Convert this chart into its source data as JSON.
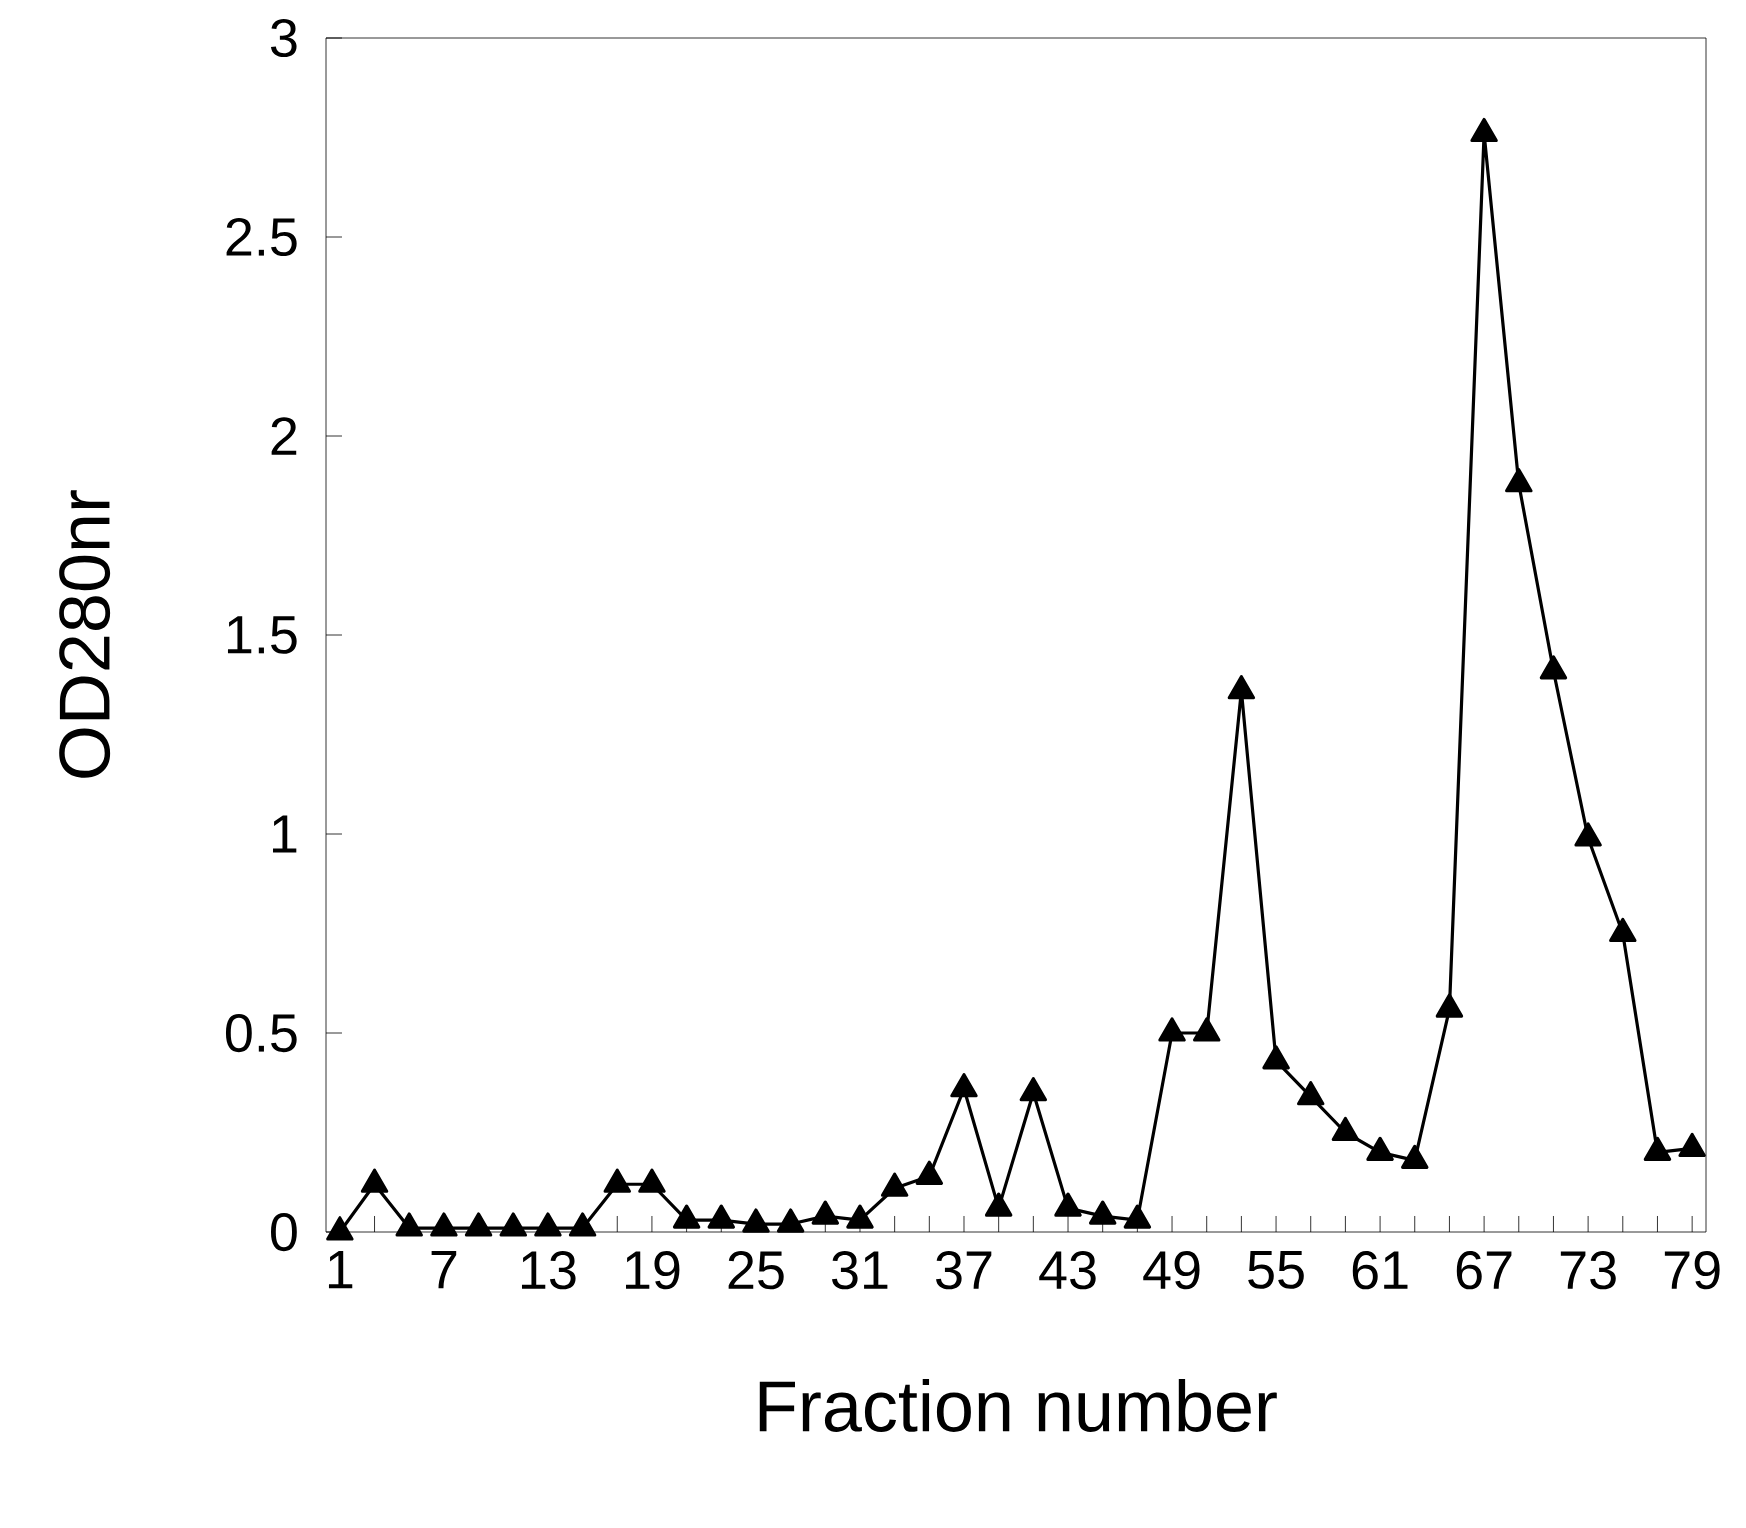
{
  "chart_data": {
    "type": "line",
    "xlabel": "Fraction number",
    "ylabel": "OD280nr",
    "x": [
      1,
      3,
      5,
      7,
      9,
      11,
      13,
      15,
      17,
      19,
      21,
      23,
      25,
      27,
      29,
      31,
      33,
      35,
      37,
      39,
      41,
      43,
      45,
      47,
      49,
      51,
      53,
      55,
      57,
      59,
      61,
      63,
      65,
      67,
      69,
      71,
      73,
      75,
      77,
      79
    ],
    "series": [
      {
        "color": "#000000",
        "values": [
          0,
          0.12,
          0.01,
          0.01,
          0.01,
          0.01,
          0.01,
          0.01,
          0.12,
          0.12,
          0.03,
          0.03,
          0.02,
          0.02,
          0.04,
          0.03,
          0.11,
          0.14,
          0.36,
          0.06,
          0.35,
          0.06,
          0.04,
          0.03,
          0.5,
          0.5,
          1.36,
          0.43,
          0.34,
          0.25,
          0.2,
          0.18,
          0.56,
          2.76,
          1.88,
          1.41,
          0.99,
          0.75,
          0.2,
          0.21
        ]
      }
    ],
    "xlim": [
      0.2,
      79.8
    ],
    "xticks": [
      1,
      {
        "value": 3,
        "label": null
      },
      {
        "value": 5,
        "label": null
      },
      7,
      {
        "value": 9,
        "label": null
      },
      {
        "value": 11,
        "label": null
      },
      13,
      {
        "value": 15,
        "label": null
      },
      {
        "value": 17,
        "label": null
      },
      19,
      {
        "value": 21,
        "label": null
      },
      {
        "value": 23,
        "label": null
      },
      25,
      {
        "value": 27,
        "label": null
      },
      {
        "value": 29,
        "label": null
      },
      31,
      {
        "value": 33,
        "label": null
      },
      {
        "value": 35,
        "label": null
      },
      37,
      {
        "value": 39,
        "label": null
      },
      {
        "value": 41,
        "label": null
      },
      43,
      {
        "value": 45,
        "label": null
      },
      {
        "value": 47,
        "label": null
      },
      49,
      {
        "value": 51,
        "label": null
      },
      {
        "value": 53,
        "label": null
      },
      55,
      {
        "value": 57,
        "label": null
      },
      {
        "value": 59,
        "label": null
      },
      61,
      {
        "value": 63,
        "label": null
      },
      {
        "value": 65,
        "label": null
      },
      67,
      {
        "value": 69,
        "label": null
      },
      {
        "value": 71,
        "label": null
      },
      73,
      {
        "value": 75,
        "label": null
      },
      {
        "value": 77,
        "label": null
      },
      79
    ],
    "ylim": [
      0,
      3
    ],
    "yticks": [
      0,
      0.5,
      1,
      1.5,
      2,
      2.5,
      3
    ],
    "marker": "triangle",
    "line_style": "solid"
  }
}
